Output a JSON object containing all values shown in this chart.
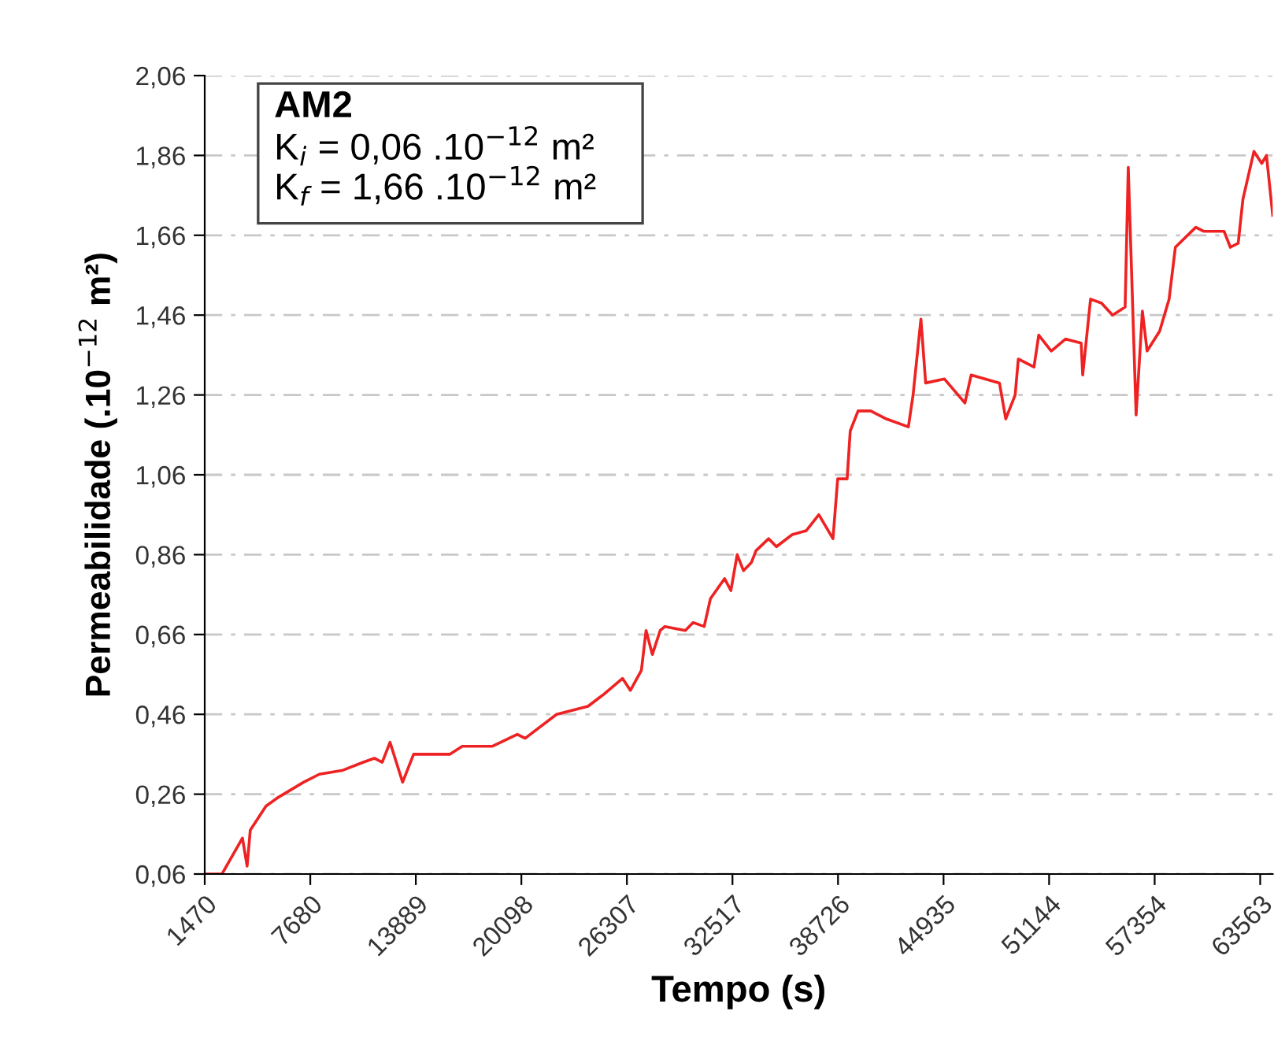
{
  "chart_data": {
    "type": "line",
    "xlabel": "Tempo (s)",
    "ylabel": "Permeabilidade (.10$^{−12}$ m²)",
    "annotations": [
      "AM2",
      "K$_{i}$ = 0,06 .10$^{−12}$ m²",
      "K$_{f}$ = 1,66 .10$^{−12}$ m²"
    ],
    "xlim": [
      1470,
      64300
    ],
    "xticks": [
      1470,
      7680,
      13889,
      20098,
      26307,
      32517,
      38726,
      44935,
      51144,
      57354,
      63563
    ],
    "ylim": [
      0.06,
      2.06
    ],
    "yticks": [
      {
        "value": 0.06,
        "label": "0,06"
      },
      {
        "value": 0.26,
        "label": "0,26"
      },
      {
        "value": 0.46,
        "label": "0,46"
      },
      {
        "value": 0.66,
        "label": "0,66"
      },
      {
        "value": 0.86,
        "label": "0,86"
      },
      {
        "value": 1.06,
        "label": "1,06"
      },
      {
        "value": 1.26,
        "label": "1,26"
      },
      {
        "value": 1.46,
        "label": "1,46"
      },
      {
        "value": 1.66,
        "label": "1,66"
      },
      {
        "value": 1.86,
        "label": "1,86"
      },
      {
        "value": 2.06,
        "label": "2,06"
      }
    ],
    "grid": "y",
    "legend": false,
    "marker": "none",
    "line_style": "solid",
    "series": [
      {
        "color": "#ee2222",
        "x": [
          1470,
          2486,
          3688,
          3965,
          4150,
          5074,
          5720,
          7291,
          8215,
          9601,
          10802,
          11449,
          11911,
          12373,
          13112,
          13759,
          15884,
          16623,
          18379,
          19857,
          20320,
          22168,
          24016,
          24940,
          26048,
          26510,
          27157,
          27434,
          27804,
          28266,
          28543,
          29744,
          30206,
          30853,
          31223,
          32054,
          32424,
          32794,
          33163,
          33625,
          33902,
          34642,
          35104,
          36028,
          36859,
          37598,
          38430,
          38707,
          39262,
          39446,
          39908,
          40648,
          41572,
          42865,
          43142,
          43604,
          43882,
          44990,
          46192,
          46561,
          48224,
          48594,
          49148,
          49333,
          50257,
          50534,
          51273,
          52105,
          53029,
          53121,
          53583,
          54230,
          54877,
          55616,
          55801,
          56263,
          56633,
          56910,
          57649,
          58203,
          58573,
          59774,
          60236,
          61438,
          61807,
          62269,
          62546,
          63193,
          63655,
          63932,
          64300
        ],
        "values": [
          0.06,
          0.06,
          0.15,
          0.08,
          0.17,
          0.23,
          0.25,
          0.29,
          0.31,
          0.32,
          0.34,
          0.35,
          0.34,
          0.39,
          0.29,
          0.36,
          0.36,
          0.38,
          0.38,
          0.41,
          0.4,
          0.46,
          0.48,
          0.51,
          0.55,
          0.52,
          0.57,
          0.67,
          0.61,
          0.67,
          0.68,
          0.67,
          0.69,
          0.68,
          0.75,
          0.8,
          0.77,
          0.86,
          0.82,
          0.84,
          0.87,
          0.9,
          0.88,
          0.91,
          0.92,
          0.96,
          0.9,
          1.05,
          1.05,
          1.17,
          1.22,
          1.22,
          1.2,
          1.18,
          1.26,
          1.45,
          1.29,
          1.3,
          1.24,
          1.31,
          1.29,
          1.2,
          1.26,
          1.35,
          1.33,
          1.41,
          1.37,
          1.4,
          1.39,
          1.31,
          1.5,
          1.49,
          1.46,
          1.48,
          1.83,
          1.21,
          1.47,
          1.37,
          1.42,
          1.5,
          1.63,
          1.68,
          1.67,
          1.67,
          1.63,
          1.64,
          1.75,
          1.87,
          1.84,
          1.86,
          1.71
        ]
      }
    ]
  }
}
